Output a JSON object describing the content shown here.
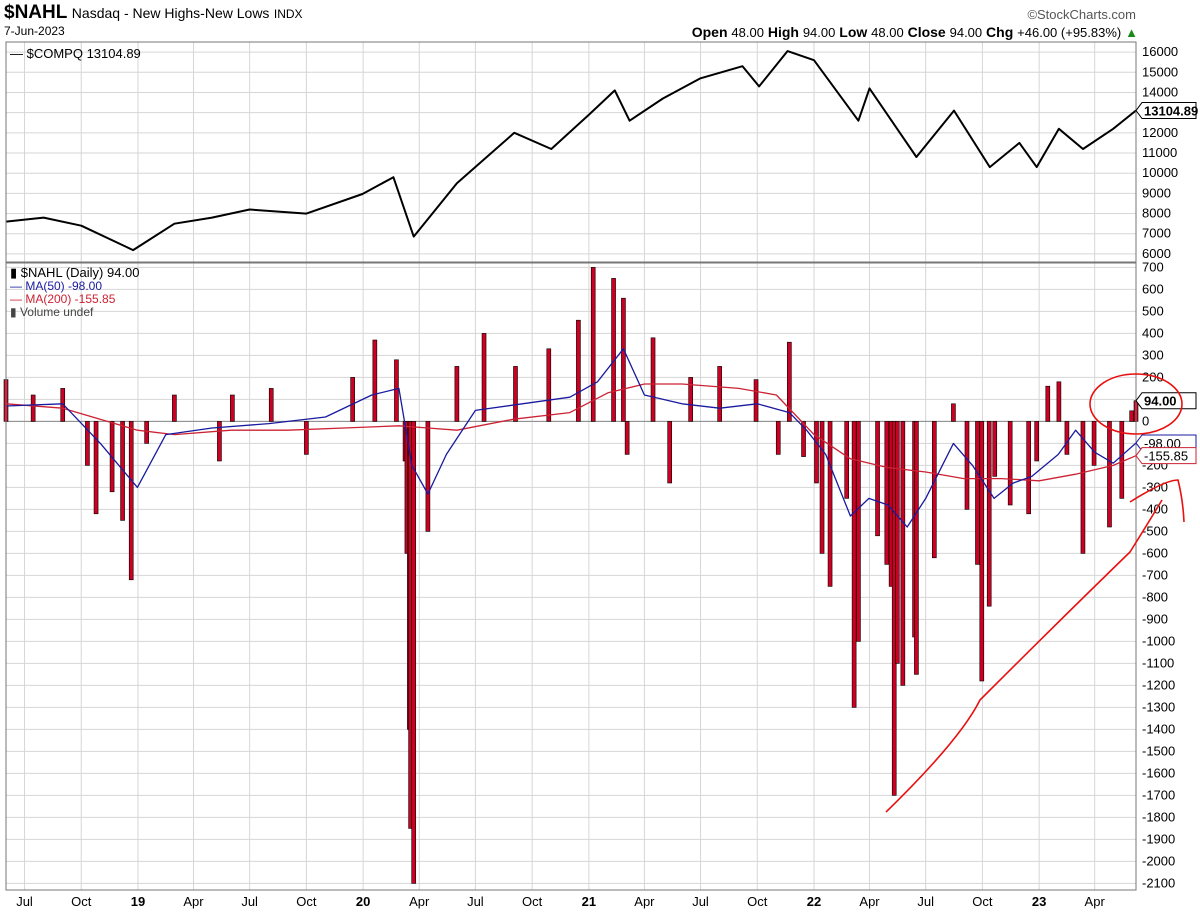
{
  "header": {
    "symbol": "$NAHL",
    "name": "Nasdaq - New Highs-New Lows",
    "exchange": "INDX",
    "date": "7-Jun-2023",
    "brand": "©StockCharts.com",
    "open_label": "Open",
    "open": "48.00",
    "high_label": "High",
    "high": "94.00",
    "low_label": "Low",
    "low": "48.00",
    "close_label": "Close",
    "close": "94.00",
    "chg_label": "Chg",
    "chg": "+46.00 (+95.83%)",
    "chg_arrow": "▲"
  },
  "colors": {
    "bar_red": "#cc0022",
    "bar_black": "#000000",
    "ma50": "#1a1aa0",
    "ma200": "#cc2233",
    "annotation": "#e81010",
    "grid": "#d6d6d6"
  },
  "chart_data": [
    {
      "type": "line",
      "series": [
        {
          "name": "$COMPQ 13104.89",
          "x": [
            "2018-06-01",
            "2018-08-01",
            "2018-10-01",
            "2018-12-24",
            "2019-03-01",
            "2019-05-01",
            "2019-07-01",
            "2019-10-01",
            "2019-12-31",
            "2020-02-19",
            "2020-03-23",
            "2020-06-01",
            "2020-09-02",
            "2020-11-01",
            "2021-01-01",
            "2021-02-12",
            "2021-03-08",
            "2021-05-01",
            "2021-07-01",
            "2021-09-07",
            "2021-10-04",
            "2021-11-19",
            "2022-01-01",
            "2022-03-14",
            "2022-04-01",
            "2022-06-16",
            "2022-08-16",
            "2022-10-13",
            "2022-11-30",
            "2022-12-28",
            "2023-02-02",
            "2023-03-13",
            "2023-05-01",
            "2023-06-07"
          ],
          "y": [
            7600,
            7800,
            7400,
            6190,
            7500,
            7800,
            8200,
            8000,
            8970,
            9800,
            6860,
            9500,
            12000,
            11200,
            12900,
            14100,
            12600,
            13700,
            14700,
            15300,
            14300,
            16050,
            15600,
            12600,
            14200,
            10800,
            13100,
            10300,
            11500,
            10300,
            12200,
            11200,
            12200,
            13104.89
          ]
        }
      ],
      "ylim": [
        5600,
        16500
      ],
      "y_ticks": [
        "6000",
        "7000",
        "8000",
        "9000",
        "10000",
        "11000",
        "12000",
        "13000",
        "14000",
        "15000",
        "16000"
      ],
      "last_value_label": "13104.89"
    },
    {
      "type": "bar",
      "title": "$NAHL (Daily) 94.00",
      "series": [
        {
          "name": "$NAHL",
          "x": [
            "2018-06-01",
            "2018-07-15",
            "2018-09-01",
            "2018-10-11",
            "2018-10-25",
            "2018-11-20",
            "2018-12-07",
            "2018-12-21",
            "2019-01-15",
            "2019-03-01",
            "2019-05-13",
            "2019-06-03",
            "2019-08-05",
            "2019-10-01",
            "2019-12-15",
            "2020-01-20",
            "2020-02-24",
            "2020-03-09",
            "2020-03-12",
            "2020-03-16",
            "2020-03-18",
            "2020-03-23",
            "2020-04-15",
            "2020-06-01",
            "2020-07-15",
            "2020-09-04",
            "2020-10-28",
            "2020-12-15",
            "2021-01-08",
            "2021-02-10",
            "2021-02-26",
            "2021-03-04",
            "2021-04-15",
            "2021-05-12",
            "2021-06-15",
            "2021-08-01",
            "2021-09-29",
            "2021-11-04",
            "2021-11-22",
            "2021-12-15",
            "2022-01-05",
            "2022-01-14",
            "2022-01-27",
            "2022-02-23",
            "2022-03-07",
            "2022-03-14",
            "2022-04-14",
            "2022-04-29",
            "2022-05-06",
            "2022-05-11",
            "2022-05-16",
            "2022-05-25",
            "2022-06-13",
            "2022-06-16",
            "2022-07-15",
            "2022-08-15",
            "2022-09-06",
            "2022-09-23",
            "2022-09-30",
            "2022-10-12",
            "2022-10-21",
            "2022-11-15",
            "2022-12-15",
            "2022-12-28",
            "2023-01-15",
            "2023-02-02",
            "2023-02-15",
            "2023-03-13",
            "2023-03-31",
            "2023-04-25",
            "2023-05-15",
            "2023-05-31",
            "2023-06-07"
          ],
          "y": [
            190,
            120,
            150,
            -200,
            -420,
            -320,
            -450,
            -720,
            -100,
            120,
            -180,
            120,
            150,
            -150,
            200,
            370,
            280,
            -180,
            -600,
            -1400,
            -1850,
            -2100,
            -500,
            250,
            400,
            250,
            330,
            460,
            700,
            650,
            560,
            -150,
            380,
            -280,
            200,
            250,
            190,
            -150,
            360,
            -160,
            -280,
            -600,
            -750,
            -350,
            -1300,
            -1000,
            -520,
            -650,
            -750,
            -1700,
            -1100,
            -1200,
            -980,
            -1150,
            -620,
            80,
            -400,
            -650,
            -1180,
            -840,
            -250,
            -380,
            -420,
            -180,
            160,
            180,
            -150,
            -600,
            -200,
            -480,
            -350,
            48,
            94
          ]
        },
        {
          "name": "MA(50) -98.00",
          "x": [
            "2018-06-01",
            "2018-09-01",
            "2018-11-01",
            "2018-12-31",
            "2019-02-15",
            "2019-05-01",
            "2019-08-01",
            "2019-11-01",
            "2020-01-15",
            "2020-02-28",
            "2020-03-20",
            "2020-04-15",
            "2020-05-15",
            "2020-07-01",
            "2020-09-15",
            "2020-12-01",
            "2021-01-15",
            "2021-02-26",
            "2021-04-01",
            "2021-06-01",
            "2021-08-01",
            "2021-10-01",
            "2021-11-22",
            "2021-12-20",
            "2022-01-20",
            "2022-03-01",
            "2022-03-31",
            "2022-05-01",
            "2022-06-01",
            "2022-07-01",
            "2022-08-15",
            "2022-09-15",
            "2022-10-20",
            "2022-11-20",
            "2022-12-20",
            "2023-02-01",
            "2023-03-01",
            "2023-04-01",
            "2023-05-01",
            "2023-06-07"
          ],
          "y": [
            70,
            80,
            -100,
            -300,
            -60,
            -30,
            -10,
            20,
            120,
            150,
            -200,
            -330,
            -150,
            50,
            80,
            110,
            180,
            330,
            120,
            80,
            60,
            80,
            40,
            -40,
            -150,
            -430,
            -350,
            -380,
            -480,
            -350,
            -100,
            -200,
            -350,
            -280,
            -250,
            -150,
            -40,
            -140,
            -190,
            -98
          ]
        },
        {
          "name": "MA(200) -155.85",
          "x": [
            "2018-06-01",
            "2018-09-01",
            "2018-12-31",
            "2019-03-01",
            "2019-06-01",
            "2019-09-01",
            "2019-12-01",
            "2020-02-28",
            "2020-04-15",
            "2020-06-01",
            "2020-09-01",
            "2020-12-01",
            "2021-02-01",
            "2021-04-01",
            "2021-06-01",
            "2021-09-01",
            "2021-11-01",
            "2022-01-01",
            "2022-03-01",
            "2022-05-01",
            "2022-07-01",
            "2022-09-01",
            "2022-11-01",
            "2023-01-01",
            "2023-03-01",
            "2023-05-01",
            "2023-06-07"
          ],
          "y": [
            80,
            60,
            -40,
            -60,
            -40,
            -40,
            -30,
            -20,
            -30,
            -40,
            10,
            40,
            130,
            170,
            170,
            150,
            120,
            -60,
            -170,
            -210,
            -230,
            -260,
            -260,
            -270,
            -240,
            -200,
            -155.85
          ]
        }
      ],
      "ylim": [
        -2130,
        720
      ],
      "y_ticks": [
        "700",
        "600",
        "500",
        "400",
        "300",
        "200",
        "100",
        "0",
        "-100",
        "-200",
        "-300",
        "-400",
        "-500",
        "-600",
        "-700",
        "-800",
        "-900",
        "-1000",
        "-1100",
        "-1200",
        "-1300",
        "-1400",
        "-1500",
        "-1600",
        "-1700",
        "-1800",
        "-1900",
        "-2000",
        "-2100"
      ],
      "legend": [
        "$NAHL (Daily) 94.00",
        "MA(50) -98.00",
        "MA(200) -155.85",
        "Volume undef"
      ],
      "legend_position": "top-left",
      "value_labels": [
        "94.00",
        "-98.00",
        "-155.85"
      ]
    }
  ],
  "x_axis": {
    "ticks": [
      "Jul",
      "Oct",
      "19",
      "Apr",
      "Jul",
      "Oct",
      "20",
      "Apr",
      "Jul",
      "Oct",
      "21",
      "Apr",
      "Jul",
      "Oct",
      "22",
      "Apr",
      "Jul",
      "Oct",
      "23",
      "Apr"
    ],
    "tick_dates": [
      "2018-07-01",
      "2018-10-01",
      "2019-01-01",
      "2019-04-01",
      "2019-07-01",
      "2019-10-01",
      "2020-01-01",
      "2020-04-01",
      "2020-07-01",
      "2020-10-01",
      "2021-01-01",
      "2021-04-01",
      "2021-07-01",
      "2021-10-01",
      "2022-01-01",
      "2022-04-01",
      "2022-07-01",
      "2022-10-01",
      "2023-01-01",
      "2023-04-01"
    ],
    "range": [
      "2018-06-01",
      "2023-06-07"
    ]
  }
}
